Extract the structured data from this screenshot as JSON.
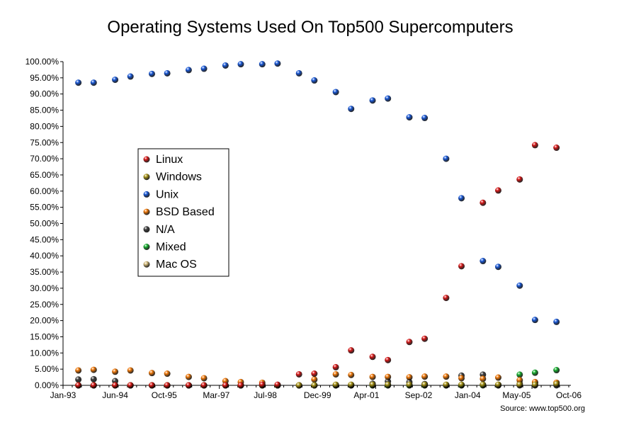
{
  "chart_data": {
    "type": "scatter",
    "title": "Operating Systems Used On Top500 Supercomputers",
    "xlabel": "",
    "ylabel": "",
    "source": "Source:  www.top500.org",
    "ylim": [
      0,
      100
    ],
    "y_ticks": [
      0,
      5,
      10,
      15,
      20,
      25,
      30,
      35,
      40,
      45,
      50,
      55,
      60,
      65,
      70,
      75,
      80,
      85,
      90,
      95,
      100
    ],
    "x_ticks": [
      "Jan-93",
      "Jun-94",
      "Oct-95",
      "Mar-97",
      "Jul-98",
      "Dec-99",
      "Apr-01",
      "Sep-02",
      "Jan-04",
      "May-05",
      "Oct-06"
    ],
    "xlim": [
      "Jan-93",
      "Oct-06"
    ],
    "grid": false,
    "legend_position": "center-left",
    "x": [
      "Jun-93",
      "Nov-93",
      "Jun-94",
      "Nov-94",
      "Jun-95",
      "Nov-95",
      "Jun-96",
      "Nov-96",
      "Jun-97",
      "Nov-97",
      "Jun-98",
      "Nov-98",
      "Jun-99",
      "Nov-99",
      "Jun-00",
      "Nov-00",
      "Jun-01",
      "Nov-01",
      "Jun-02",
      "Nov-02",
      "Jun-03",
      "Nov-03",
      "Jun-04",
      "Nov-04",
      "Jun-05",
      "Nov-05",
      "Jun-06"
    ],
    "series": [
      {
        "name": "Linux",
        "color": "#d81818",
        "values": [
          0,
          0,
          0,
          0,
          0,
          0,
          0,
          0,
          0,
          0,
          0.2,
          0.2,
          3.4,
          3.6,
          5.6,
          10.8,
          8.8,
          7.8,
          13.4,
          14.4,
          27,
          36.8,
          56.4,
          60.2,
          63.6,
          74.2,
          73.4
        ]
      },
      {
        "name": "Windows",
        "color": "#a89418",
        "values": [
          0,
          0,
          0,
          0,
          0,
          0,
          0,
          0,
          0,
          0,
          0,
          0,
          0,
          0,
          0.2,
          0.2,
          0.2,
          0.2,
          0.2,
          0.2,
          0.2,
          0.2,
          0.2,
          0.2,
          0.2,
          0.2,
          0.4
        ]
      },
      {
        "name": "Unix",
        "color": "#1858d8",
        "values": [
          93.5,
          93.5,
          94.4,
          95.4,
          96.2,
          96.4,
          97.4,
          97.8,
          98.8,
          99.2,
          99.2,
          99.4,
          96.4,
          94.2,
          90.6,
          85.4,
          88,
          88.6,
          82.8,
          82.6,
          70,
          57.8,
          38.4,
          36.6,
          30.8,
          20.2,
          19.6
        ]
      },
      {
        "name": "BSD Based",
        "color": "#f07808",
        "values": [
          4.6,
          4.8,
          4.2,
          4.6,
          3.8,
          3.6,
          2.6,
          2.2,
          1.3,
          1,
          0.8,
          0,
          0,
          1.8,
          3.4,
          3.2,
          2.6,
          2.6,
          2.5,
          2.7,
          2.7,
          2.2,
          2,
          2.4,
          1.6,
          1,
          0.8
        ]
      },
      {
        "name": "N/A",
        "color": "#404040",
        "values": [
          1.8,
          1.9,
          1.3,
          0,
          0,
          0,
          0,
          0,
          0,
          0,
          0,
          0,
          0,
          0,
          0,
          0,
          0.5,
          1.2,
          1,
          0.4,
          0,
          3,
          3.3,
          0,
          0,
          0,
          0
        ]
      },
      {
        "name": "Mixed",
        "color": "#18b030",
        "values": [
          0,
          0,
          0,
          0,
          0,
          0,
          0,
          0,
          0,
          0,
          0,
          0,
          0,
          0,
          0,
          0,
          0,
          0,
          0,
          0,
          0,
          0,
          0,
          0,
          3.3,
          3.9,
          4.7
        ]
      },
      {
        "name": "Mac OS",
        "color": "#d0b878",
        "values": [
          0,
          0,
          0,
          0,
          0,
          0,
          0,
          0,
          0,
          0,
          0,
          0,
          0,
          0,
          0,
          0,
          0,
          0,
          0,
          0,
          0,
          0,
          0.2,
          0.2,
          0.6,
          0.8,
          0.8
        ]
      }
    ]
  }
}
